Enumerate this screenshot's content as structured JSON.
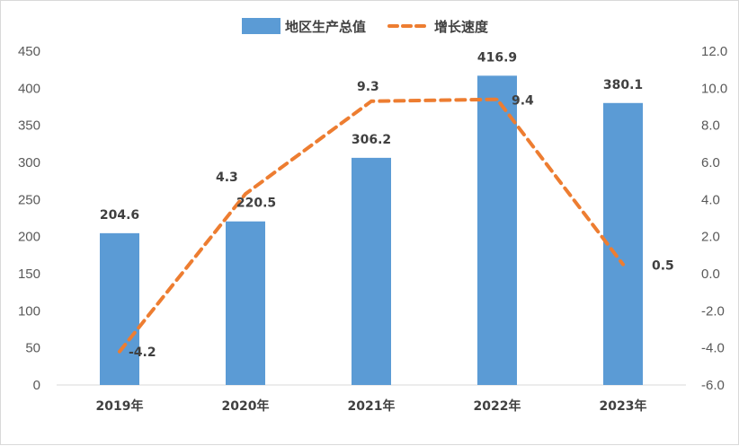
{
  "chart_data": {
    "type": "bar",
    "categories": [
      "2019年",
      "2020年",
      "2021年",
      "2022年",
      "2023年"
    ],
    "series": [
      {
        "name": "地区生产总值",
        "type": "bar",
        "axis": "left",
        "values": [
          204.6,
          220.5,
          306.2,
          416.9,
          380.1
        ],
        "labels": [
          "204.6",
          "220.5",
          "306.2",
          "416.9",
          "380.1"
        ]
      },
      {
        "name": "增长速度",
        "type": "line",
        "axis": "right",
        "values": [
          -4.2,
          4.3,
          9.3,
          9.4,
          0.5
        ],
        "labels": [
          "-4.2",
          "4.3",
          "9.3",
          "9.4",
          "0.5"
        ]
      }
    ],
    "y_left": {
      "min": 0,
      "max": 450,
      "step": 50,
      "ticks": [
        "0",
        "50",
        "100",
        "150",
        "200",
        "250",
        "300",
        "350",
        "400",
        "450"
      ]
    },
    "y_right": {
      "min": -6,
      "max": 12,
      "step": 2,
      "ticks": [
        "-6.0",
        "-4.0",
        "-2.0",
        "0.0",
        "2.0",
        "4.0",
        "6.0",
        "8.0",
        "10.0",
        "12.0"
      ]
    },
    "legend_position": "top",
    "grid": false,
    "colors": {
      "bar": "#5b9bd5",
      "line": "#ed7d31",
      "axis": "#d9d9d9",
      "text": "#404040"
    }
  }
}
